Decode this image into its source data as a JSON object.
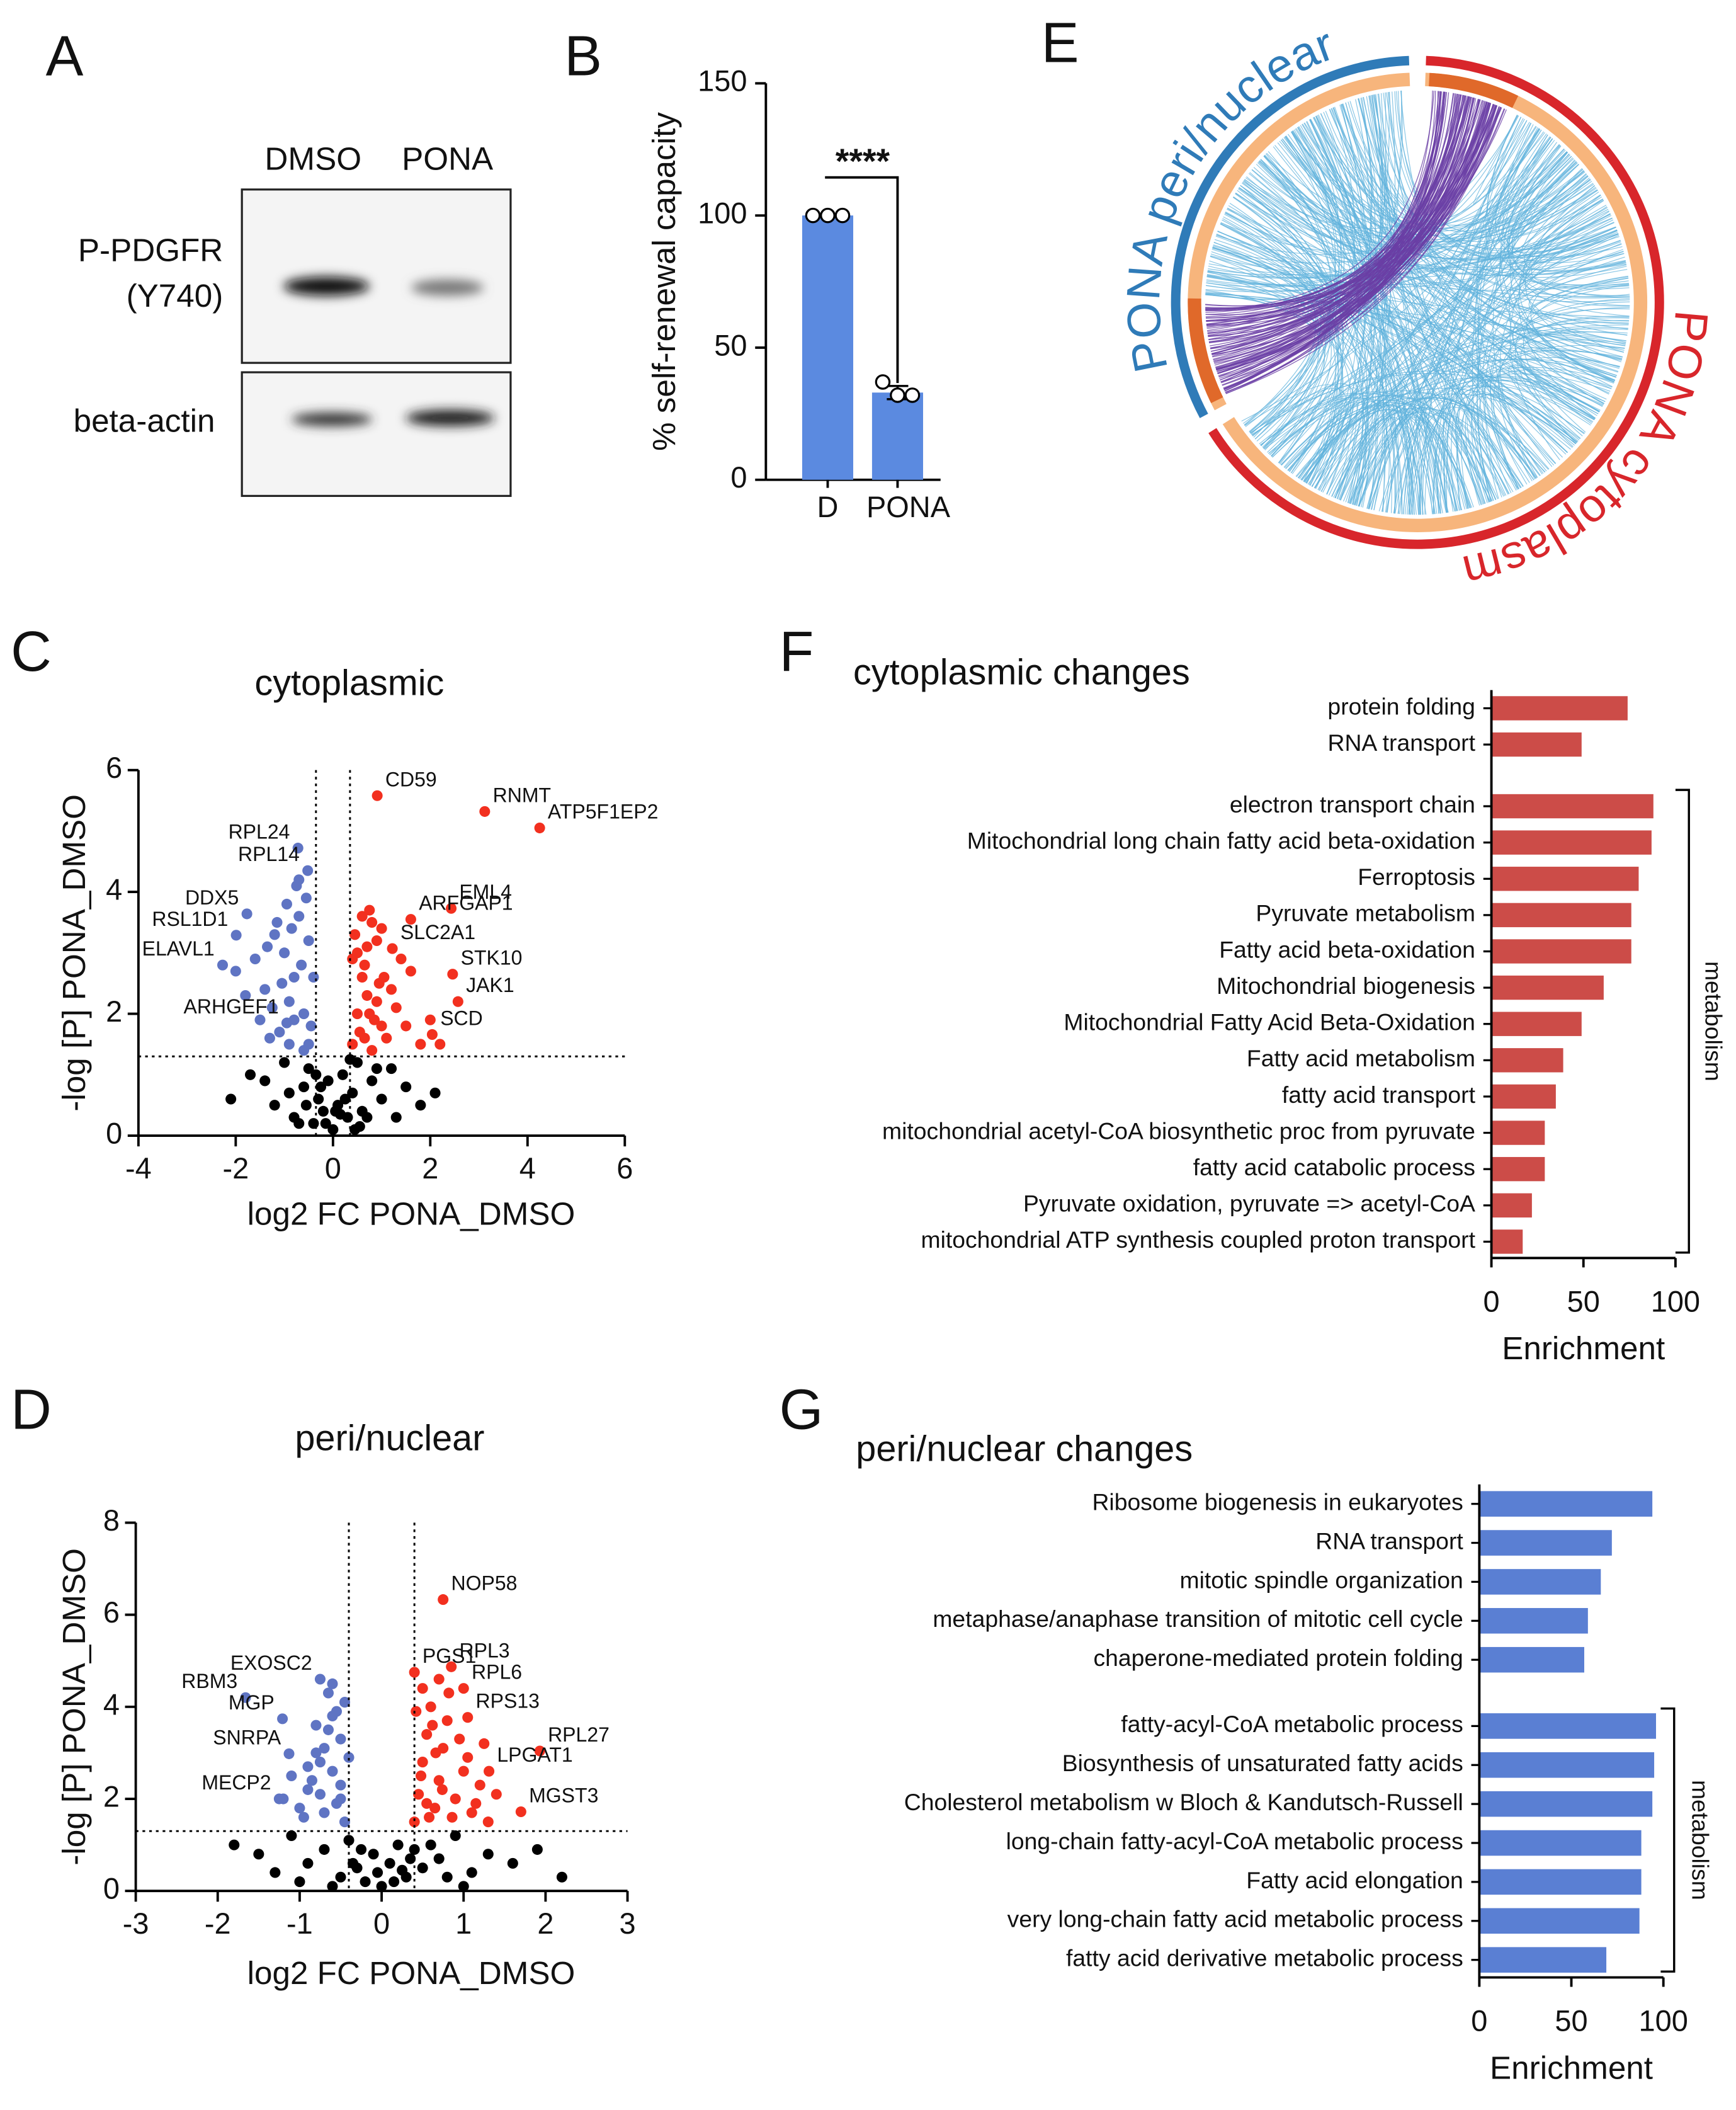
{
  "panel_labels": [
    "A",
    "B",
    "C",
    "D",
    "E",
    "F",
    "G"
  ],
  "blot": {
    "lanes": [
      "DMSO",
      "PONA"
    ],
    "rows": [
      {
        "label": [
          "P-PDGFR",
          "(Y740)"
        ]
      },
      {
        "label": [
          "beta-actin"
        ]
      }
    ]
  },
  "chord": {
    "segments": [
      {
        "name": "PONA peri/nuclear",
        "color": "#2f7bb8"
      },
      {
        "name": "PONA cytoplasm",
        "color": "#d8262b"
      }
    ]
  },
  "chart_data": [
    {
      "type": "bar",
      "categories": [
        "D",
        "PONA"
      ],
      "values": [
        100,
        33
      ],
      "errors": [
        0,
        2.5
      ],
      "points": [
        [
          100,
          100,
          100
        ],
        [
          37,
          32,
          32
        ]
      ],
      "color": "#5b8ae0",
      "ylabel": "% self-renewal capacity",
      "ylim": [
        0,
        150
      ],
      "yticks": [
        0,
        50,
        100,
        150
      ],
      "annotation": "****"
    },
    {
      "type": "scatter",
      "title": "cytoplasmic",
      "xlabel": "log2 FC PONA_DMSO",
      "ylabel": "-log [P] PONA_DMSO",
      "xlim": [
        -4,
        6
      ],
      "ylim": [
        0,
        6
      ],
      "xticks": [
        -4,
        -2,
        0,
        2,
        4,
        6
      ],
      "yticks": [
        0,
        2,
        4,
        6
      ],
      "vlines": [
        -0.35,
        0.35
      ],
      "hline": 1.3,
      "series": [
        {
          "color": "#5f74c3",
          "x": [
            -0.5,
            -0.6,
            -0.8,
            -1.0,
            -1.2,
            -0.45,
            -0.7,
            -0.9,
            -1.1,
            -1.4,
            -1.6,
            -0.55,
            -0.75,
            -1.3,
            -0.65,
            -0.85,
            -1.05,
            -1.5,
            -1.8,
            -0.5,
            -0.95,
            -1.25,
            -0.4,
            -0.6,
            -0.8,
            -1.15,
            -2.0,
            -0.7,
            -1.35,
            -0.9
          ],
          "values": [
            1.5,
            2.0,
            2.6,
            3.0,
            3.3,
            1.8,
            3.6,
            2.2,
            1.7,
            2.4,
            2.9,
            3.9,
            4.1,
            1.6,
            2.8,
            3.4,
            2.5,
            1.9,
            2.3,
            3.2,
            3.8,
            2.1,
            2.6,
            1.4,
            1.9,
            3.5,
            2.7,
            4.2,
            3.1,
            1.5
          ]
        },
        {
          "color": "#f2301f",
          "x": [
            0.4,
            0.5,
            0.6,
            0.7,
            0.8,
            0.9,
            1.0,
            1.2,
            1.4,
            0.45,
            0.55,
            0.65,
            0.75,
            0.85,
            0.95,
            1.1,
            1.3,
            1.6,
            1.8,
            2.0,
            0.5,
            0.6,
            0.7,
            0.8,
            0.9,
            1.05,
            1.5,
            0.4,
            0.65,
            2.2,
            0.75,
            1.0
          ],
          "values": [
            1.5,
            2.0,
            2.6,
            3.1,
            3.5,
            2.2,
            1.8,
            2.4,
            2.9,
            3.3,
            1.7,
            2.8,
            3.7,
            1.9,
            2.5,
            1.6,
            2.1,
            2.7,
            1.5,
            1.9,
            3.0,
            3.6,
            2.3,
            1.4,
            3.2,
            2.6,
            1.8,
            2.9,
            1.6,
            1.5,
            2.0,
            3.4
          ]
        },
        {
          "color": "#000000",
          "x": [
            -2.1,
            -1.7,
            -1.4,
            -1.2,
            -1.0,
            -0.8,
            -0.6,
            -0.5,
            -0.4,
            -0.3,
            -0.2,
            -0.1,
            0,
            0.1,
            0.2,
            0.3,
            0.4,
            0.5,
            0.6,
            0.8,
            1.0,
            1.2,
            1.5,
            1.8,
            2.1,
            -0.9,
            -0.7,
            -0.35,
            -0.15,
            0.05,
            0.25,
            0.45,
            0.7,
            0.9,
            -0.55,
            -0.25,
            0.15,
            0.35,
            0.55,
            1.3
          ],
          "values": [
            0.6,
            1.0,
            0.9,
            0.5,
            1.2,
            0.3,
            0.8,
            1.1,
            0.2,
            0.6,
            0.4,
            0.9,
            0.1,
            0.5,
            1.0,
            0.3,
            0.7,
            1.2,
            0.4,
            0.9,
            0.6,
            1.1,
            0.8,
            0.5,
            0.7,
            0.7,
            0.2,
            1.0,
            0.2,
            0.4,
            0.6,
            0.1,
            0.3,
            1.1,
            0.5,
            0.8,
            0.35,
            1.25,
            0.15,
            0.3
          ]
        }
      ],
      "labeled": [
        {
          "label": "CD59",
          "x": 0.91,
          "y": 5.58
        },
        {
          "label": "RNMT",
          "x": 3.12,
          "y": 5.32
        },
        {
          "label": "ATP5F1EP2",
          "x": 4.25,
          "y": 5.05
        },
        {
          "label": "RPL24",
          "x": -0.72,
          "y": 4.72
        },
        {
          "label": "RPL14",
          "x": -0.52,
          "y": 4.35
        },
        {
          "label": "DDX5",
          "x": -1.77,
          "y": 3.64
        },
        {
          "label": "RSL1D1",
          "x": -1.99,
          "y": 3.29
        },
        {
          "label": "ELAVL1",
          "x": -2.27,
          "y": 2.8
        },
        {
          "label": "ARHGEF1",
          "x": -0.95,
          "y": 1.85
        },
        {
          "label": "EML4",
          "x": 2.43,
          "y": 3.73
        },
        {
          "label": "ARFGAP1",
          "x": 1.6,
          "y": 3.55
        },
        {
          "label": "SLC2A1",
          "x": 1.22,
          "y": 3.07
        },
        {
          "label": "STK10",
          "x": 2.46,
          "y": 2.65
        },
        {
          "label": "JAK1",
          "x": 2.57,
          "y": 2.2
        },
        {
          "label": "SCD",
          "x": 2.04,
          "y": 1.66
        }
      ]
    },
    {
      "type": "scatter",
      "title": "peri/nuclear",
      "xlabel": "log2 FC PONA_DMSO",
      "ylabel": "-log [P] PONA_DMSO",
      "xlim": [
        -3,
        3
      ],
      "ylim": [
        0,
        8
      ],
      "xticks": [
        -3,
        -2,
        -1,
        0,
        1,
        2,
        3
      ],
      "yticks": [
        0,
        2,
        4,
        6,
        8
      ],
      "vlines": [
        -0.4,
        0.4
      ],
      "hline": 1.3,
      "series": [
        {
          "color": "#5f74c3",
          "x": [
            -0.45,
            -0.5,
            -0.6,
            -0.7,
            -0.8,
            -0.9,
            -1.0,
            -0.55,
            -0.65,
            -0.75,
            -0.85,
            -0.95,
            -1.1,
            -0.5,
            -0.6,
            -0.7,
            -0.4,
            -0.45,
            -0.55,
            -0.8,
            -1.2,
            -0.65,
            -0.75,
            -0.9,
            -0.5,
            -0.6
          ],
          "values": [
            1.5,
            2.0,
            2.6,
            3.1,
            3.6,
            2.2,
            1.8,
            3.9,
            4.3,
            2.8,
            2.4,
            1.6,
            2.5,
            3.3,
            4.5,
            1.7,
            2.9,
            4.1,
            1.9,
            3.0,
            2.0,
            3.5,
            2.1,
            2.7,
            2.3,
            3.8
          ]
        },
        {
          "color": "#f2301f",
          "x": [
            0.4,
            0.45,
            0.5,
            0.55,
            0.6,
            0.65,
            0.7,
            0.75,
            0.8,
            0.9,
            1.0,
            1.1,
            1.2,
            1.3,
            0.42,
            0.5,
            0.58,
            0.66,
            0.74,
            0.82,
            0.95,
            1.05,
            1.15,
            1.4,
            0.48,
            0.62,
            0.7,
            0.86,
            1.25,
            0.55
          ],
          "values": [
            1.5,
            2.1,
            2.8,
            3.4,
            4.0,
            1.8,
            2.4,
            3.1,
            3.7,
            2.0,
            2.6,
            1.7,
            2.3,
            1.5,
            3.9,
            4.4,
            1.6,
            3.0,
            2.2,
            4.3,
            3.3,
            2.9,
            1.9,
            2.1,
            2.5,
            3.6,
            4.6,
            1.6,
            3.2,
            1.9
          ]
        },
        {
          "color": "#000000",
          "x": [
            -1.8,
            -1.5,
            -1.3,
            -1.1,
            -0.9,
            -0.7,
            -0.5,
            -0.4,
            -0.3,
            -0.2,
            -0.1,
            0,
            0.1,
            0.2,
            0.3,
            0.4,
            0.5,
            0.7,
            0.9,
            1.1,
            1.3,
            1.6,
            1.9,
            2.2,
            -0.6,
            -0.25,
            -0.05,
            0.15,
            0.35,
            0.6,
            -1.0,
            0.8,
            1.0,
            -0.35,
            0.25
          ],
          "values": [
            1.0,
            0.8,
            0.4,
            1.2,
            0.6,
            0.9,
            0.3,
            1.1,
            0.5,
            0.2,
            0.8,
            0.1,
            0.6,
            1.0,
            0.3,
            0.9,
            0.5,
            0.7,
            1.2,
            0.4,
            0.8,
            0.6,
            0.9,
            0.3,
            0.1,
            0.9,
            0.4,
            0.2,
            0.7,
            1.0,
            0.2,
            0.3,
            0.1,
            0.6,
            0.45
          ]
        }
      ],
      "labeled": [
        {
          "label": "NOP58",
          "x": 0.75,
          "y": 6.33
        },
        {
          "label": "EXOSC2",
          "x": -0.75,
          "y": 4.6
        },
        {
          "label": "PGS1",
          "x": 0.4,
          "y": 4.75
        },
        {
          "label": "RPL3",
          "x": 0.85,
          "y": 4.87
        },
        {
          "label": "RPL6",
          "x": 1.0,
          "y": 4.4
        },
        {
          "label": "RPS13",
          "x": 1.05,
          "y": 3.77
        },
        {
          "label": "RPL27",
          "x": 1.93,
          "y": 3.04
        },
        {
          "label": "LPGAT1",
          "x": 1.31,
          "y": 2.6
        },
        {
          "label": "MGST3",
          "x": 1.7,
          "y": 1.72
        },
        {
          "label": "RBM3",
          "x": -1.66,
          "y": 4.2
        },
        {
          "label": "MGP",
          "x": -1.21,
          "y": 3.74
        },
        {
          "label": "SNRPA",
          "x": -1.13,
          "y": 2.98
        },
        {
          "label": "MECP2",
          "x": -1.25,
          "y": 2.0
        }
      ]
    },
    {
      "type": "hbar",
      "title": "cytoplasmic changes",
      "xlabel": "Enrichment",
      "color": "#cc4c48",
      "xlim": [
        0,
        100
      ],
      "xticks": [
        0,
        50,
        100
      ],
      "bracket_label": "metabolism",
      "categories": [
        "protein folding",
        "RNA transport",
        null,
        "electron transport chain",
        "Mitochondrial long chain fatty acid beta-oxidation",
        "Ferroptosis",
        "Pyruvate metabolism",
        "Fatty acid beta-oxidation",
        "Mitochondrial biogenesis",
        "Mitochondrial Fatty Acid Beta-Oxidation",
        "Fatty acid metabolism",
        "fatty acid transport",
        "mitochondrial acetyl-CoA biosynthetic proc from pyruvate",
        "fatty acid catabolic process",
        "Pyruvate oxidation, pyruvate => acetyl-CoA",
        "mitochondrial ATP synthesis coupled proton transport"
      ],
      "values": [
        74,
        49,
        null,
        88,
        87,
        80,
        76,
        76,
        61,
        49,
        39,
        35,
        29,
        29,
        22,
        17
      ]
    },
    {
      "type": "hbar",
      "title": "peri/nuclear changes",
      "xlabel": "Enrichment",
      "color": "#5a7fd3",
      "xlim": [
        0,
        100
      ],
      "xticks": [
        0,
        50,
        100
      ],
      "bracket_label": "metabolism",
      "categories": [
        "Ribosome biogenesis in eukaryotes",
        "RNA transport",
        "mitotic spindle organization",
        "metaphase/anaphase transition of mitotic cell cycle",
        "chaperone-mediated protein folding",
        null,
        "fatty-acyl-CoA metabolic process",
        "Biosynthesis of unsaturated fatty acids",
        "Cholesterol metabolism w Bloch & Kandutsch-Russell",
        "long-chain fatty-acyl-CoA metabolic process",
        "Fatty acid elongation",
        "very long-chain fatty acid metabolic process",
        "fatty acid derivative metabolic process"
      ],
      "values": [
        94,
        72,
        66,
        59,
        57,
        null,
        96,
        95,
        94,
        88,
        88,
        87,
        69
      ]
    }
  ]
}
